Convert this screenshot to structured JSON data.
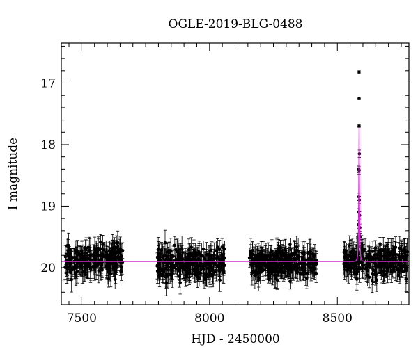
{
  "chart_data": {
    "type": "scatter",
    "title": "OGLE-2019-BLG-0488",
    "xlabel": "HJD - 2450000",
    "ylabel": "I magnitude",
    "xlim": [
      7420,
      8780
    ],
    "ylim": [
      20.6,
      16.35
    ],
    "y_inverted": true,
    "x_ticks": [
      7500,
      8000,
      8500
    ],
    "y_ticks": [
      17,
      18,
      19,
      20
    ],
    "grid": false,
    "legend": "none",
    "seasons": [
      {
        "start": 7433,
        "end": 7660,
        "median_mag": 19.88,
        "scatter": 0.22
      },
      {
        "start": 7795,
        "end": 8060,
        "median_mag": 19.92,
        "scatter": 0.22
      },
      {
        "start": 8155,
        "end": 8420,
        "median_mag": 19.92,
        "scatter": 0.2
      },
      {
        "start": 8525,
        "end": 8775,
        "median_mag": 19.9,
        "scatter": 0.22
      }
    ],
    "event_points": [
      {
        "x": 8585,
        "y": 16.82
      },
      {
        "x": 8585,
        "y": 17.25
      },
      {
        "x": 8585,
        "y": 17.7
      },
      {
        "x": 8586,
        "y": 18.15
      },
      {
        "x": 8584,
        "y": 18.4
      },
      {
        "x": 8585,
        "y": 18.42
      },
      {
        "x": 8584,
        "y": 18.85
      },
      {
        "x": 8586,
        "y": 18.9
      },
      {
        "x": 8583,
        "y": 19.1
      },
      {
        "x": 8587,
        "y": 19.15
      },
      {
        "x": 8582,
        "y": 19.3
      },
      {
        "x": 8588,
        "y": 19.35
      },
      {
        "x": 8580,
        "y": 19.5
      },
      {
        "x": 8590,
        "y": 19.5
      },
      {
        "x": 8578,
        "y": 19.65
      },
      {
        "x": 8593,
        "y": 19.65
      },
      {
        "x": 8575,
        "y": 19.75
      }
    ],
    "model": {
      "baseline_mag": 19.9,
      "peak_mag": 17.68,
      "t0": 8585,
      "tE": 3.6,
      "color": "#d22bd2"
    },
    "colors": {
      "points": "#000000",
      "model": "#d22bd2"
    }
  }
}
